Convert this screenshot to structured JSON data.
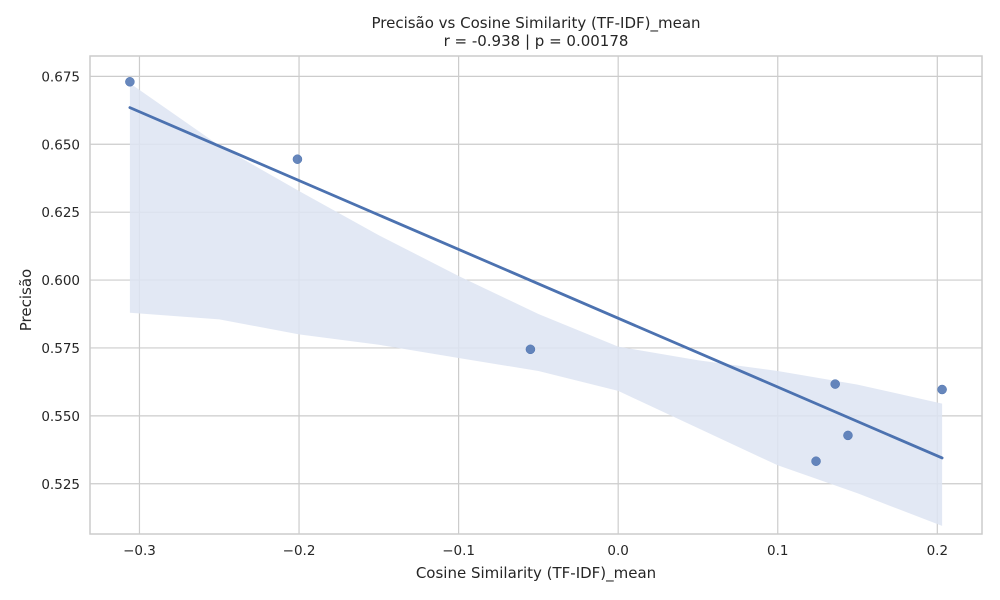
{
  "chart_data": {
    "type": "scatter",
    "title": "Precisão vs Cosine Similarity (TF-IDF)_mean",
    "subtitle": "r = -0.938  |  p = 0.00178",
    "xlabel": "Cosine Similarity (TF-IDF)_mean",
    "ylabel": "Precisão",
    "xlim": [
      -0.331,
      0.228
    ],
    "ylim": [
      0.5065,
      0.6825
    ],
    "xticks": [
      -0.3,
      -0.2,
      -0.1,
      0.0,
      0.1,
      0.2
    ],
    "xtick_labels": [
      "−0.3",
      "−0.2",
      "−0.1",
      "0.0",
      "0.1",
      "0.2"
    ],
    "yticks": [
      0.525,
      0.55,
      0.575,
      0.6,
      0.625,
      0.65,
      0.675
    ],
    "ytick_labels": [
      "0.525",
      "0.550",
      "0.575",
      "0.600",
      "0.625",
      "0.650",
      "0.675"
    ],
    "grid": true,
    "points": [
      {
        "x": -0.306,
        "y": 0.673
      },
      {
        "x": -0.201,
        "y": 0.6445
      },
      {
        "x": -0.055,
        "y": 0.5745
      },
      {
        "x": 0.124,
        "y": 0.5333
      },
      {
        "x": 0.136,
        "y": 0.5617
      },
      {
        "x": 0.144,
        "y": 0.5428
      },
      {
        "x": 0.203,
        "y": 0.5597
      }
    ],
    "regression": {
      "x": [
        -0.306,
        0.203
      ],
      "y": [
        0.6635,
        0.5345
      ]
    },
    "confidence_band": {
      "x": [
        -0.306,
        -0.25,
        -0.2,
        -0.15,
        -0.1,
        -0.05,
        0.0,
        0.05,
        0.1,
        0.15,
        0.203
      ],
      "upper": [
        0.6725,
        0.6495,
        0.6328,
        0.6165,
        0.6015,
        0.5875,
        0.5755,
        0.5705,
        0.5665,
        0.5615,
        0.5545
      ],
      "lower": [
        0.588,
        0.5855,
        0.58,
        0.5762,
        0.5713,
        0.5665,
        0.5592,
        0.5455,
        0.5318,
        0.5215,
        0.5095
      ]
    },
    "colors": {
      "points": "#4c72b0",
      "line": "#4c72b0",
      "band": "#dde4f2",
      "grid": "#cccccc",
      "frame": "#cccccc"
    }
  }
}
